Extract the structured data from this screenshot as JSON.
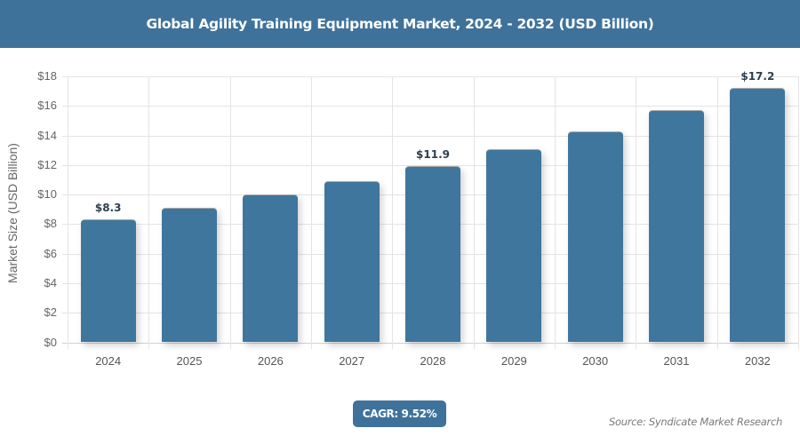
{
  "header": {
    "title": "Global Agility Training Equipment Market, 2024 - 2032 (USD Billion)"
  },
  "chart_data": {
    "type": "bar",
    "title": "Global Agility Training Equipment Market, 2024 - 2032 (USD Billion)",
    "categories": [
      "2024",
      "2025",
      "2026",
      "2027",
      "2028",
      "2029",
      "2030",
      "2031",
      "2032"
    ],
    "values": [
      8.3,
      9.1,
      10.0,
      10.9,
      11.9,
      13.1,
      14.3,
      15.7,
      17.2
    ],
    "data_labels": {
      "0": "$8.3",
      "4": "$11.9",
      "8": "$17.2"
    },
    "xlabel": "",
    "ylabel": "Market Size (USD Billion)",
    "ylim": [
      0,
      18
    ],
    "yticks": [
      "$0",
      "$2",
      "$4",
      "$6",
      "$8",
      "$10",
      "$12",
      "$14",
      "$16",
      "$18"
    ],
    "grid": true,
    "legend": null,
    "bar_color": "#3f769d"
  },
  "footer": {
    "cagr_label": "CAGR: 9.52%",
    "source": "Source: Syndicate Market Research"
  },
  "colors": {
    "header_bg": "#3f729b",
    "bar": "#3f769d"
  }
}
